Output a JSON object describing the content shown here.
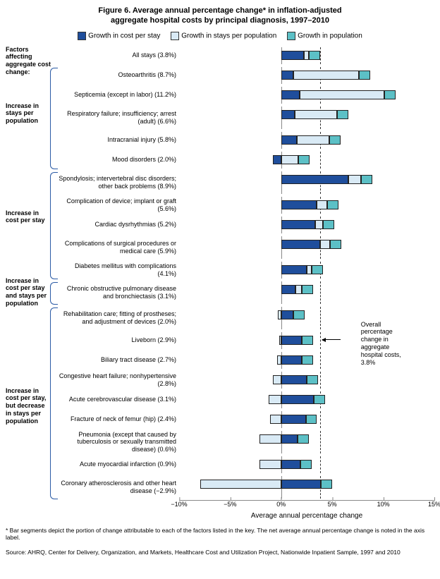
{
  "title_line1": "Figure 6. Average annual percentage change* in inflation-adjusted",
  "title_line2": "aggregate hospital costs by principal diagnosis, 1997–2010",
  "legend": {
    "cost_per_stay": "Growth in cost per stay",
    "stays_per_pop": "Growth in stays per population",
    "population": "Growth in population"
  },
  "colors": {
    "cost_per_stay": "#1f4e9c",
    "stays_per_pop": "#d9eaf5",
    "population": "#5cc0c6",
    "bracket": "#2a5aa5"
  },
  "axis": {
    "min": -10,
    "max": 15,
    "ticks": [
      {
        "v": -10,
        "label": "−10%"
      },
      {
        "v": -5,
        "label": "−5%"
      },
      {
        "v": 0,
        "label": "0%"
      },
      {
        "v": 5,
        "label": "5%"
      },
      {
        "v": 10,
        "label": "10%"
      },
      {
        "v": 15,
        "label": "15%"
      }
    ],
    "label": "Average annual percentage change",
    "reference_value": 3.8,
    "reference_label": "Overall percentage change in aggregate hospital costs, 3.8%"
  },
  "groups_header": "Factors affecting aggregate cost change:",
  "groups": [
    {
      "label": "Increase in stays per population",
      "start": 1,
      "end": 5
    },
    {
      "label": "Increase in cost per stay",
      "start": 6,
      "end": 10
    },
    {
      "label": "Increase in cost per stay and stays per population",
      "start": 11,
      "end": 11
    },
    {
      "label": "Increase in cost per stay, but decrease in stays per population",
      "start": 12,
      "end": 20
    }
  ],
  "rows": [
    {
      "label": "All stays (3.8%)",
      "cps": 2.2,
      "spp": 0.5,
      "pop": 1.1
    },
    {
      "label": "Osteoarthritis (8.7%)",
      "cps": 1.2,
      "spp": 6.4,
      "pop": 1.1
    },
    {
      "label": "Septicemia (except in labor) (11.2%)",
      "cps": 1.8,
      "spp": 8.3,
      "pop": 1.1
    },
    {
      "label": "Respiratory failure; insufficiency; arrest (adult) (6.6%)",
      "tall": true,
      "cps": 1.3,
      "spp": 4.2,
      "pop": 1.1
    },
    {
      "label": "Intracranial injury (5.8%)",
      "cps": 1.5,
      "spp": 3.2,
      "pop": 1.1
    },
    {
      "label": "Mood disorders (2.0%)",
      "cps": -0.8,
      "spp": 1.7,
      "pop": 1.1
    },
    {
      "label": "Spondylosis; intervertebral disc disorders; other back problems (8.9%)",
      "tall": true,
      "cps": 6.6,
      "spp": 1.2,
      "pop": 1.1
    },
    {
      "label": "Complication of device; implant or graft (5.6%)",
      "cps": 3.5,
      "spp": 1.0,
      "pop": 1.1
    },
    {
      "label": "Cardiac dysrhythmias (5.2%)",
      "cps": 3.3,
      "spp": 0.8,
      "pop": 1.1
    },
    {
      "label": "Complications of surgical procedures or medical care (5.9%)",
      "tall": true,
      "cps": 3.8,
      "spp": 1.0,
      "pop": 1.1
    },
    {
      "label": "Diabetes mellitus with complications (4.1%)",
      "cps": 2.5,
      "spp": 0.5,
      "pop": 1.1
    },
    {
      "label": "Chronic obstructive pulmonary disease and bronchiectasis (3.1%)",
      "tall": true,
      "cps": 1.4,
      "spp": 0.6,
      "pop": 1.1
    },
    {
      "label": "Rehabilitation care; fitting of prostheses; and adjustment of devices (2.0%)",
      "tall": true,
      "cps": 1.2,
      "spp": -0.3,
      "pop": 1.1
    },
    {
      "label": "Liveborn (2.9%)",
      "cps": 2.0,
      "spp": -0.2,
      "pop": 1.1
    },
    {
      "label": "Biliary tract disease (2.7%)",
      "cps": 2.0,
      "spp": -0.4,
      "pop": 1.1
    },
    {
      "label": "Congestive heart failure; nonhypertensive  (2.8%)",
      "cps": 2.5,
      "spp": -0.8,
      "pop": 1.1
    },
    {
      "label": "Acute cerebrovascular disease (3.1%)",
      "cps": 3.2,
      "spp": -1.2,
      "pop": 1.1
    },
    {
      "label": "Fracture of neck of femur (hip) (2.4%)",
      "cps": 2.4,
      "spp": -1.1,
      "pop": 1.1
    },
    {
      "label": "Pneumonia (except that caused by tuberculosis or sexually transmitted disease) (0.6%)",
      "tall": true,
      "cps": 1.6,
      "spp": -2.1,
      "pop": 1.1
    },
    {
      "label": "Acute myocardial infarction (0.9%)",
      "cps": 1.9,
      "spp": -2.1,
      "pop": 1.1
    },
    {
      "label": "Coronary atherosclerosis and other heart disease (−2.9%)",
      "tall": true,
      "cps": 3.9,
      "spp": -7.9,
      "pop": 1.1
    }
  ],
  "footnote1": "* Bar segments depict the portion of change attributable to each of the factors listed in the key. The net average annual percentage change is noted in the axis label.",
  "footnote2": "Source: AHRQ, Center for Delivery, Organization, and Markets, Healthcare Cost and Utilization Project, Nationwide Inpatient Sample, 1997 and 2010"
}
